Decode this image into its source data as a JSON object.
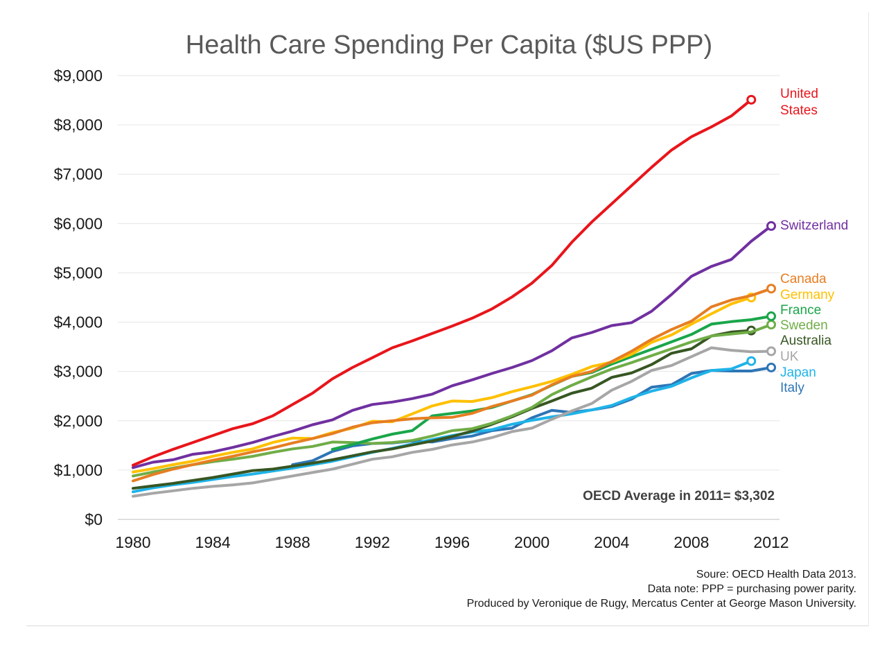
{
  "chart_data": {
    "type": "line",
    "title": "Health Care Spending Per Capita ($US PPP)",
    "xlabel": "",
    "ylabel": "",
    "xlim": [
      1980,
      2012
    ],
    "ylim": [
      0,
      9000
    ],
    "x_ticks": [
      "1980",
      "1984",
      "1988",
      "1992",
      "1996",
      "2000",
      "2004",
      "2008",
      "2012"
    ],
    "y_ticks": [
      "$0",
      "$1,000",
      "$2,000",
      "$3,000",
      "$4,000",
      "$5,000",
      "$6,000",
      "$7,000",
      "$8,000",
      "$9,000"
    ],
    "grid": true,
    "legend": "labels at line ends (right)",
    "annotation": "OECD Average in 2011= $3,302",
    "series": [
      {
        "name": "United States",
        "label_lines": [
          "United",
          "States"
        ],
        "color": "#e8151b",
        "x": [
          1980,
          1981,
          1982,
          1983,
          1984,
          1985,
          1986,
          1987,
          1988,
          1989,
          1990,
          1991,
          1992,
          1993,
          1994,
          1995,
          1996,
          1997,
          1998,
          1999,
          2000,
          2001,
          2002,
          2003,
          2004,
          2005,
          2006,
          2007,
          2008,
          2009,
          2010,
          2011
        ],
        "values": [
          1100,
          1270,
          1420,
          1560,
          1700,
          1840,
          1940,
          2100,
          2330,
          2560,
          2850,
          3080,
          3280,
          3480,
          3620,
          3770,
          3920,
          4080,
          4270,
          4510,
          4790,
          5150,
          5620,
          6030,
          6400,
          6770,
          7140,
          7490,
          7760,
          7960,
          8180,
          8510
        ]
      },
      {
        "name": "Switzerland",
        "label_lines": [
          "Switzerland"
        ],
        "color": "#7030a0",
        "x": [
          1980,
          1981,
          1982,
          1983,
          1984,
          1985,
          1986,
          1987,
          1988,
          1989,
          1990,
          1991,
          1992,
          1993,
          1994,
          1995,
          1996,
          1997,
          1998,
          1999,
          2000,
          2001,
          2002,
          2003,
          2004,
          2005,
          2006,
          2007,
          2008,
          2009,
          2010,
          2011,
          2012
        ],
        "values": [
          1050,
          1160,
          1210,
          1320,
          1370,
          1460,
          1560,
          1680,
          1790,
          1920,
          2020,
          2210,
          2330,
          2380,
          2450,
          2540,
          2710,
          2830,
          2960,
          3080,
          3220,
          3420,
          3680,
          3790,
          3930,
          3990,
          4220,
          4560,
          4930,
          5130,
          5270,
          5640,
          5950
        ]
      },
      {
        "name": "Canada",
        "label_lines": [
          "Canada"
        ],
        "color": "#e67e22",
        "x": [
          1980,
          1981,
          1982,
          1983,
          1984,
          1985,
          1986,
          1987,
          1988,
          1989,
          1990,
          1991,
          1992,
          1993,
          1994,
          1995,
          1996,
          1997,
          1998,
          1999,
          2000,
          2001,
          2002,
          2003,
          2004,
          2005,
          2006,
          2007,
          2008,
          2009,
          2010,
          2011,
          2012
        ],
        "values": [
          780,
          910,
          1020,
          1110,
          1200,
          1280,
          1370,
          1450,
          1550,
          1640,
          1740,
          1870,
          1960,
          2000,
          2040,
          2060,
          2070,
          2150,
          2290,
          2400,
          2520,
          2730,
          2900,
          3000,
          3200,
          3410,
          3650,
          3850,
          4020,
          4310,
          4450,
          4540,
          4680
        ]
      },
      {
        "name": "Germany",
        "label_lines": [
          "Germany"
        ],
        "color": "#ffc000",
        "x": [
          1980,
          1981,
          1982,
          1983,
          1984,
          1985,
          1986,
          1987,
          1988,
          1989,
          1990,
          1991,
          1992,
          1993,
          1994,
          1995,
          1996,
          1997,
          1998,
          1999,
          2000,
          2001,
          2002,
          2003,
          2004,
          2005,
          2006,
          2007,
          2008,
          2009,
          2010,
          2011
        ],
        "values": [
          960,
          1030,
          1110,
          1180,
          1280,
          1360,
          1430,
          1560,
          1650,
          1640,
          1760,
          1850,
          1990,
          1980,
          2140,
          2300,
          2400,
          2390,
          2470,
          2590,
          2690,
          2800,
          2940,
          3100,
          3190,
          3350,
          3590,
          3740,
          3960,
          4170,
          4370,
          4500
        ]
      },
      {
        "name": "France",
        "label_lines": [
          "France"
        ],
        "color": "#1aa64a",
        "x": [
          1990,
          1991,
          1992,
          1993,
          1994,
          1995,
          1996,
          1997,
          1998,
          1999,
          2000,
          2001,
          2002,
          2003,
          2004,
          2005,
          2006,
          2007,
          2008,
          2009,
          2010,
          2011,
          2012
        ],
        "values": [
          1420,
          1520,
          1630,
          1730,
          1800,
          2100,
          2150,
          2200,
          2270,
          2400,
          2530,
          2720,
          2900,
          2980,
          3150,
          3300,
          3450,
          3600,
          3750,
          3960,
          4010,
          4050,
          4120
        ]
      },
      {
        "name": "Sweden",
        "label_lines": [
          "Sweden"
        ],
        "color": "#70ad47",
        "x": [
          1980,
          1981,
          1982,
          1983,
          1984,
          1985,
          1986,
          1987,
          1988,
          1989,
          1990,
          1991,
          1992,
          1993,
          1994,
          1995,
          1996,
          1997,
          1998,
          1999,
          2000,
          2001,
          2002,
          2003,
          2004,
          2005,
          2006,
          2007,
          2008,
          2009,
          2010,
          2011,
          2012
        ],
        "values": [
          880,
          960,
          1040,
          1110,
          1170,
          1220,
          1280,
          1360,
          1430,
          1480,
          1570,
          1560,
          1540,
          1560,
          1600,
          1690,
          1800,
          1840,
          1950,
          2100,
          2270,
          2530,
          2720,
          2890,
          3050,
          3180,
          3320,
          3460,
          3600,
          3720,
          3760,
          3800,
          3950
        ]
      },
      {
        "name": "Australia",
        "label_lines": [
          "Australia"
        ],
        "color": "#375623",
        "x": [
          1980,
          1981,
          1982,
          1983,
          1984,
          1985,
          1986,
          1987,
          1988,
          1989,
          1990,
          1991,
          1992,
          1993,
          1994,
          1995,
          1996,
          1997,
          1998,
          1999,
          2000,
          2001,
          2002,
          2003,
          2004,
          2005,
          2006,
          2007,
          2008,
          2009,
          2010,
          2011
        ],
        "values": [
          630,
          680,
          730,
          790,
          850,
          920,
          990,
          1020,
          1080,
          1140,
          1210,
          1290,
          1370,
          1430,
          1510,
          1590,
          1680,
          1790,
          1930,
          2080,
          2250,
          2400,
          2560,
          2660,
          2880,
          2970,
          3140,
          3370,
          3460,
          3720,
          3800,
          3830
        ]
      },
      {
        "name": "UK",
        "label_lines": [
          "UK"
        ],
        "color": "#a6a6a6",
        "x": [
          1980,
          1981,
          1982,
          1983,
          1984,
          1985,
          1986,
          1987,
          1988,
          1989,
          1990,
          1991,
          1992,
          1993,
          1994,
          1995,
          1996,
          1997,
          1998,
          1999,
          2000,
          2001,
          2002,
          2003,
          2004,
          2005,
          2006,
          2007,
          2008,
          2009,
          2010,
          2011,
          2012
        ],
        "values": [
          470,
          530,
          580,
          630,
          670,
          700,
          740,
          810,
          880,
          950,
          1020,
          1120,
          1220,
          1270,
          1360,
          1420,
          1510,
          1570,
          1660,
          1780,
          1850,
          2030,
          2200,
          2350,
          2620,
          2800,
          3020,
          3120,
          3300,
          3480,
          3430,
          3400,
          3410
        ]
      },
      {
        "name": "Japan",
        "label_lines": [
          "Japan"
        ],
        "color": "#1fb3e8",
        "x": [
          1980,
          1981,
          1982,
          1983,
          1984,
          1985,
          1986,
          1987,
          1988,
          1989,
          1990,
          1991,
          1992,
          1993,
          1994,
          1995,
          1996,
          1997,
          1998,
          1999,
          2000,
          2001,
          2002,
          2003,
          2004,
          2005,
          2006,
          2007,
          2008,
          2009,
          2010,
          2011
        ],
        "values": [
          560,
          640,
          700,
          750,
          810,
          870,
          920,
          980,
          1040,
          1110,
          1180,
          1270,
          1360,
          1440,
          1530,
          1620,
          1700,
          1770,
          1820,
          1930,
          2010,
          2080,
          2140,
          2220,
          2310,
          2470,
          2600,
          2700,
          2870,
          3020,
          3050,
          3210
        ]
      },
      {
        "name": "Italy",
        "label_lines": [
          "Italy"
        ],
        "color": "#2e75b6",
        "x": [
          1988,
          1989,
          1990,
          1991,
          1992,
          1993,
          1994,
          1995,
          1996,
          1997,
          1998,
          1999,
          2000,
          2001,
          2002,
          2003,
          2004,
          2005,
          2006,
          2007,
          2008,
          2009,
          2010,
          2011,
          2012
        ],
        "values": [
          1110,
          1190,
          1380,
          1490,
          1540,
          1550,
          1590,
          1570,
          1640,
          1690,
          1800,
          1850,
          2060,
          2210,
          2170,
          2220,
          2290,
          2440,
          2680,
          2730,
          2960,
          3020,
          3010,
          3010,
          3080
        ]
      }
    ]
  },
  "notes": {
    "source": "Soure: OECD Health Data 2013.",
    "data_note": "Data note: PPP = purchasing power parity.",
    "produced_by": "Produced by Veronique de Rugy, Mercatus Center at George Mason University."
  }
}
